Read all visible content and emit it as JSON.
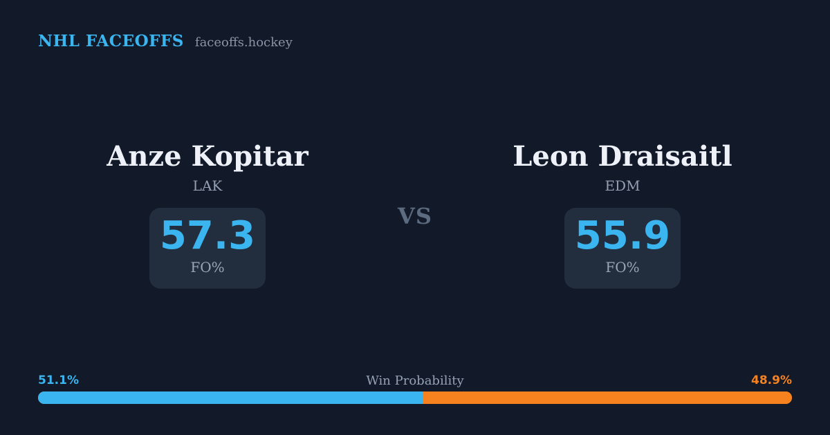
{
  "header": {
    "title": "NHL FACEOFFS",
    "site": "faceoffs.hockey"
  },
  "matchup": {
    "vs_label": "VS",
    "left": {
      "name": "Anze Kopitar",
      "team": "LAK",
      "stat_value": "57.3",
      "stat_label": "FO%"
    },
    "right": {
      "name": "Leon Draisaitl",
      "team": "EDM",
      "stat_value": "55.9",
      "stat_label": "FO%"
    }
  },
  "win_probability": {
    "label": "Win Probability",
    "left_pct_label": "51.1%",
    "right_pct_label": "48.9%",
    "left_value": 51.1,
    "right_value": 48.9
  },
  "colors": {
    "background": "#121a2a",
    "card": "#222e3e",
    "accent_blue": "#3ab5f0",
    "accent_orange": "#f5821e",
    "name_text": "#eef2f8",
    "muted_text": "#94a0b2",
    "vs_text": "#5d6b80"
  }
}
